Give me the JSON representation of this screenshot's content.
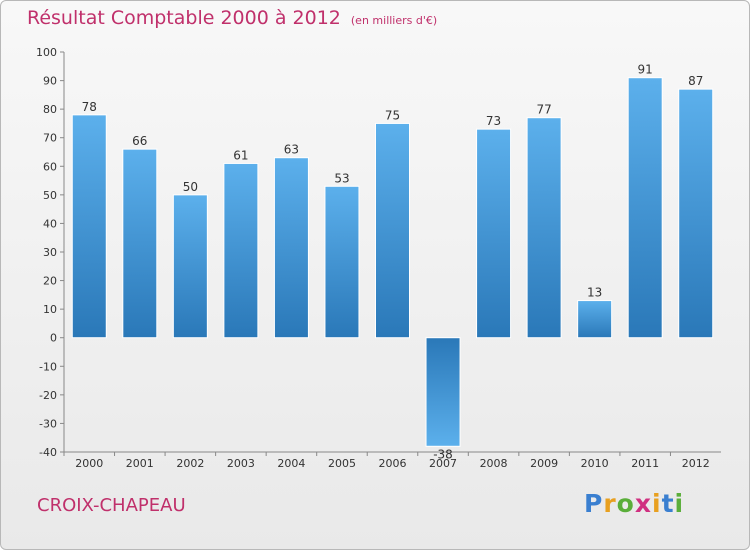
{
  "chart_data": {
    "type": "bar",
    "title": "Résultat Comptable 2000 à 2012",
    "subtitle": "(en milliers d'€)",
    "categories": [
      "2000",
      "2001",
      "2002",
      "2003",
      "2004",
      "2005",
      "2006",
      "2007",
      "2008",
      "2009",
      "2010",
      "2011",
      "2012"
    ],
    "values": [
      78,
      66,
      50,
      61,
      63,
      53,
      75,
      -38,
      73,
      77,
      13,
      91,
      87
    ],
    "ylim": [
      -40,
      100
    ],
    "yticks": [
      100,
      90,
      80,
      70,
      60,
      50,
      40,
      30,
      20,
      10,
      0,
      -10,
      -20,
      -30,
      -40
    ],
    "ytick_labels": [
      "100",
      "90",
      "80",
      "70",
      "60",
      "50",
      "40",
      "30",
      "20",
      "10",
      "0",
      "-10",
      "-20",
      "-30",
      "-40"
    ],
    "xlabel": "",
    "ylabel": "",
    "grid": false,
    "bar_color": "#3a8fd0"
  },
  "footer": {
    "region_name": "CROIX-CHAPEAU",
    "logo_letters": [
      "P",
      "r",
      "o",
      "x",
      "i",
      "t",
      "i"
    ],
    "logo_colors": [
      "#3a7fd0",
      "#e8a020",
      "#5aae3a",
      "#d03080",
      "#e8a020",
      "#3a7fd0",
      "#5aae3a"
    ]
  }
}
